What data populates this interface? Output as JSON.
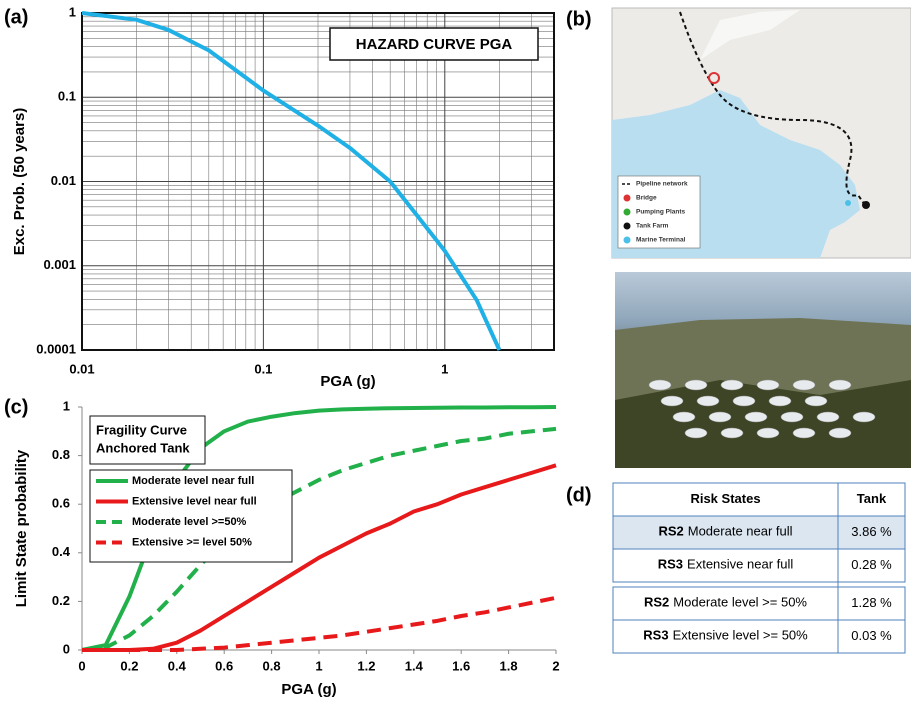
{
  "panels": {
    "a": "(a)",
    "b": "(b)",
    "c": "(c)",
    "d": "(d)"
  },
  "chart_data": [
    {
      "type": "line",
      "title": "HAZARD CURVE PGA",
      "x_label": "PGA (g)",
      "y_label": "Exc. Prob. (50 years)",
      "xscale": "log",
      "yscale": "log",
      "grid": true,
      "minor_grid": true,
      "xlim": [
        0.01,
        4
      ],
      "ylim": [
        0.0001,
        1
      ],
      "xticks": [
        0.01,
        0.1,
        1
      ],
      "yticks": [
        0.0001,
        0.001,
        0.01,
        0.1,
        1
      ],
      "color": "#1fb0e6",
      "x": [
        0.01,
        0.02,
        0.03,
        0.05,
        0.1,
        0.2,
        0.3,
        0.5,
        0.7,
        1.0,
        1.5,
        2.0
      ],
      "values": [
        1,
        0.83,
        0.63,
        0.36,
        0.12,
        0.046,
        0.025,
        0.01,
        0.004,
        0.0015,
        0.00039,
        0.0001
      ]
    },
    {
      "type": "line",
      "title_lines": [
        "Fragility Curve",
        "Anchored Tank"
      ],
      "x_label": "PGA (g)",
      "y_label": "Limit State probability",
      "grid": false,
      "legend": "upper left",
      "xlim": [
        0,
        2
      ],
      "ylim": [
        0,
        1
      ],
      "xticks": [
        0,
        0.2,
        0.4,
        0.6,
        0.8,
        1,
        1.2,
        1.4,
        1.6,
        1.8,
        2
      ],
      "yticks": [
        0,
        0.2,
        0.4,
        0.6,
        0.8,
        1
      ],
      "x": [
        0,
        0.1,
        0.2,
        0.3,
        0.4,
        0.5,
        0.6,
        0.7,
        0.8,
        0.9,
        1.0,
        1.1,
        1.2,
        1.3,
        1.4,
        1.5,
        1.6,
        1.7,
        1.8,
        1.9,
        2.0
      ],
      "series": [
        {
          "name": "Moderate level near full",
          "color": "#22b04b",
          "dash": false,
          "values": [
            0,
            0.02,
            0.22,
            0.48,
            0.7,
            0.83,
            0.9,
            0.94,
            0.96,
            0.975,
            0.985,
            0.99,
            0.993,
            0.995,
            0.996,
            0.997,
            0.998,
            0.998,
            0.999,
            0.999,
            1
          ]
        },
        {
          "name": "Extensive level near full",
          "color": "#e8191b",
          "dash": false,
          "values": [
            0,
            0,
            0,
            0.005,
            0.03,
            0.08,
            0.14,
            0.2,
            0.26,
            0.32,
            0.38,
            0.43,
            0.48,
            0.52,
            0.57,
            0.6,
            0.64,
            0.67,
            0.7,
            0.73,
            0.76
          ]
        },
        {
          "name": "Moderate level >=50%",
          "color": "#22b04b",
          "dash": true,
          "values": [
            0,
            0.01,
            0.06,
            0.14,
            0.24,
            0.35,
            0.45,
            0.53,
            0.6,
            0.65,
            0.7,
            0.74,
            0.77,
            0.8,
            0.82,
            0.84,
            0.86,
            0.87,
            0.89,
            0.9,
            0.91
          ]
        },
        {
          "name": "Extensive >= level 50%",
          "color": "#e8191b",
          "dash": true,
          "values": [
            0,
            0,
            0,
            0,
            0,
            0.005,
            0.01,
            0.02,
            0.03,
            0.04,
            0.05,
            0.06,
            0.075,
            0.09,
            0.105,
            0.12,
            0.14,
            0.155,
            0.175,
            0.195,
            0.215
          ]
        }
      ]
    }
  ],
  "map": {
    "legend": [
      "Pipeline network",
      "Bridge",
      "Pumping Plants",
      "Tank Farm",
      "Marine Terminal"
    ]
  },
  "table": {
    "header": [
      "Risk States",
      "Tank"
    ],
    "rows": [
      {
        "code": "RS2",
        "state": "Moderate near full",
        "tank": "3.86 %"
      },
      {
        "code": "RS3",
        "state": "Extensive near full",
        "tank": "0.28 %"
      },
      {
        "code": "RS2",
        "state": "Moderate level >= 50%",
        "tank": "1.28 %"
      },
      {
        "code": "RS3",
        "state": "Extensive level >= 50%",
        "tank": "0.03 %"
      }
    ]
  }
}
